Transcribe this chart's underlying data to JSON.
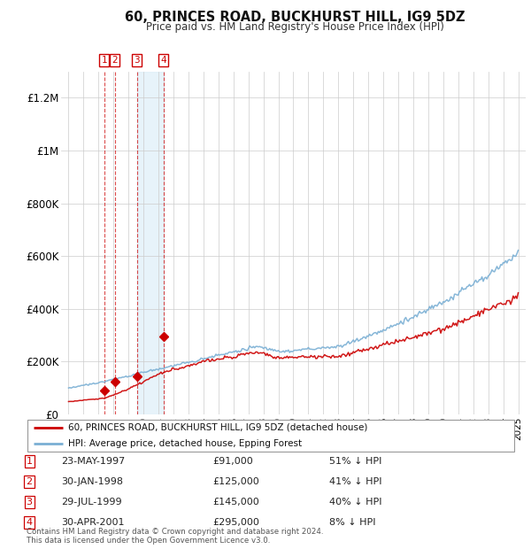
{
  "title": "60, PRINCES ROAD, BUCKHURST HILL, IG9 5DZ",
  "subtitle": "Price paid vs. HM Land Registry's House Price Index (HPI)",
  "footer1": "Contains HM Land Registry data © Crown copyright and database right 2024.",
  "footer2": "This data is licensed under the Open Government Licence v3.0.",
  "legend_line1": "60, PRINCES ROAD, BUCKHURST HILL, IG9 5DZ (detached house)",
  "legend_line2": "HPI: Average price, detached house, Epping Forest",
  "sale_dates": [
    "23-MAY-1997",
    "30-JAN-1998",
    "29-JUL-1999",
    "30-APR-2001"
  ],
  "sale_prices": [
    91000,
    125000,
    145000,
    295000
  ],
  "sale_years": [
    1997.38,
    1998.08,
    1999.57,
    2001.33
  ],
  "red_line_color": "#cc0000",
  "blue_line_color": "#7aafd4",
  "background_color": "#ffffff",
  "grid_color": "#cccccc",
  "ylim": [
    0,
    1300000
  ],
  "yticks": [
    0,
    200000,
    400000,
    600000,
    800000,
    1000000,
    1200000
  ],
  "ytick_labels": [
    "£0",
    "£200K",
    "£400K",
    "£600K",
    "£800K",
    "£1M",
    "£1.2M"
  ],
  "xmin": 1994.5,
  "xmax": 2025.5,
  "table_rows": [
    [
      "1",
      "23-MAY-1997",
      "£91,000",
      "51% ↓ HPI"
    ],
    [
      "2",
      "30-JAN-1998",
      "£125,000",
      "41% ↓ HPI"
    ],
    [
      "3",
      "29-JUL-1999",
      "£145,000",
      "40% ↓ HPI"
    ],
    [
      "4",
      "30-APR-2001",
      "£295,000",
      "8% ↓ HPI"
    ]
  ]
}
